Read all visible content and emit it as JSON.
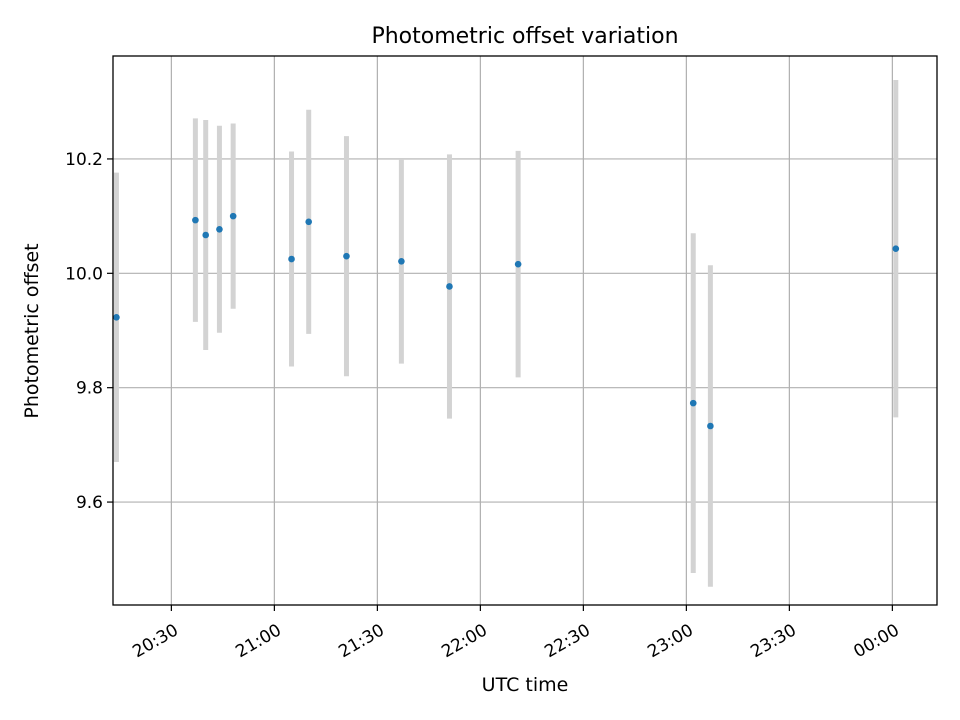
{
  "chart_data": {
    "type": "scatter",
    "title": "Photometric offset variation",
    "xlabel": "UTC time",
    "ylabel": "Photometric offset",
    "x_ticks": [
      "20:30",
      "21:00",
      "21:30",
      "22:00",
      "22:30",
      "23:00",
      "23:30",
      "00:00"
    ],
    "y_ticks": [
      "9.6",
      "9.8",
      "10.0",
      "10.2"
    ],
    "xlim": [
      "20:13",
      "00:13"
    ],
    "ylim": [
      9.42,
      10.38
    ],
    "grid": true,
    "legend": "none",
    "colors": {
      "points": "#1f77b4",
      "errorbars": "#d3d3d3",
      "grid": "#b0b0b0"
    },
    "points": [
      {
        "x": "20:14",
        "y": 9.923,
        "yerr": 0.253
      },
      {
        "x": "20:37",
        "y": 10.093,
        "yerr": 0.178
      },
      {
        "x": "20:40",
        "y": 10.067,
        "yerr": 0.201
      },
      {
        "x": "20:44",
        "y": 10.077,
        "yerr": 0.181
      },
      {
        "x": "20:48",
        "y": 10.1,
        "yerr": 0.162
      },
      {
        "x": "21:05",
        "y": 10.025,
        "yerr": 0.188
      },
      {
        "x": "21:10",
        "y": 10.09,
        "yerr": 0.196
      },
      {
        "x": "21:21",
        "y": 10.03,
        "yerr": 0.21
      },
      {
        "x": "21:37",
        "y": 10.021,
        "yerr": 0.179
      },
      {
        "x": "21:51",
        "y": 9.977,
        "yerr": 0.231
      },
      {
        "x": "22:11",
        "y": 10.016,
        "yerr": 0.198
      },
      {
        "x": "23:02",
        "y": 9.773,
        "yerr": 0.297
      },
      {
        "x": "23:07",
        "y": 9.733,
        "yerr": 0.281
      },
      {
        "x": "00:01",
        "y": 10.043,
        "yerr": 0.295
      }
    ]
  }
}
